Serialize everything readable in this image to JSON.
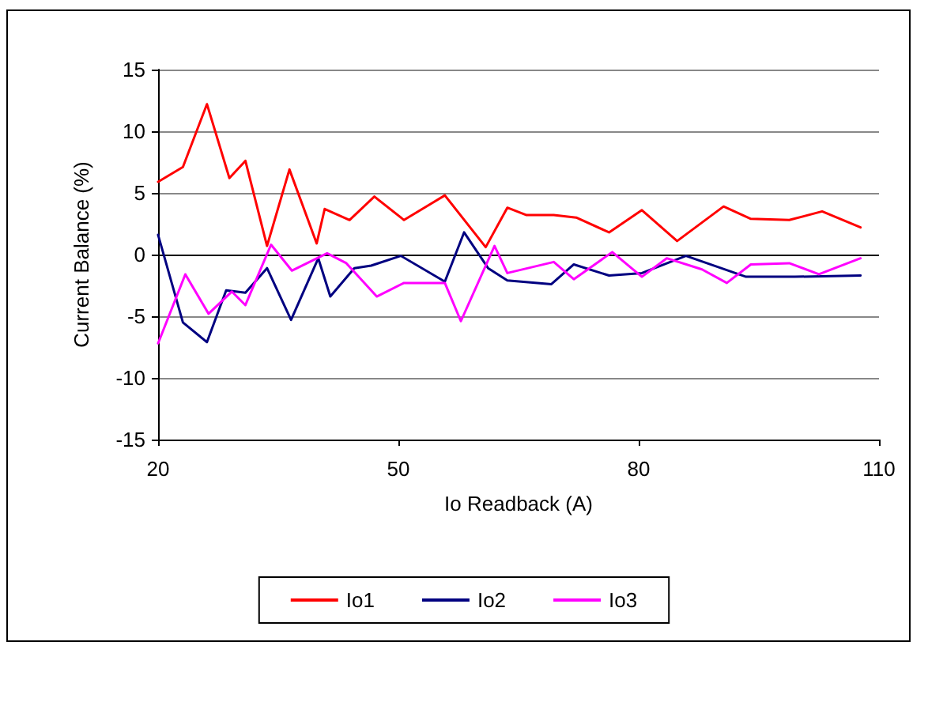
{
  "chart_data": {
    "type": "line",
    "xlabel": "Io Readback (A)",
    "ylabel": "Current Balance (%)",
    "xlim": [
      20,
      110
    ],
    "xticks": [
      20,
      50,
      80,
      110
    ],
    "ylim": [
      -15,
      15
    ],
    "yticks": [
      -15,
      -10,
      -5,
      0,
      5,
      10,
      15
    ],
    "grid": "y",
    "legend": "bottom",
    "marker": "none",
    "line_style": "solid",
    "ref_lines": [
      {
        "axis": "y",
        "value": 0,
        "color": "#000000"
      }
    ],
    "series": [
      {
        "name": "Io1",
        "color": "#ff0000",
        "x": [
          20,
          23.1,
          26.1,
          28.9,
          30.9,
          33.6,
          36.4,
          39.8,
          40.8,
          43.9,
          47,
          50.7,
          55.8,
          60.9,
          63.6,
          66,
          69.4,
          72.2,
          76.3,
          80.4,
          84.8,
          90.6,
          94,
          98.8,
          102.9,
          107.7
        ],
        "values": [
          5.9,
          7.1,
          12.2,
          6.2,
          7.6,
          0.7,
          6.9,
          0.9,
          3.7,
          2.8,
          4.7,
          2.8,
          4.8,
          0.6,
          3.8,
          3.2,
          3.2,
          3.0,
          1.8,
          3.6,
          1.1,
          3.9,
          2.9,
          2.8,
          3.5,
          2.2
        ]
      },
      {
        "name": "Io2",
        "color": "#000080",
        "x": [
          20,
          23.1,
          26.1,
          28.5,
          30.9,
          33.6,
          36.6,
          40,
          41.5,
          44.5,
          46.6,
          50.3,
          55.8,
          58.2,
          61.2,
          63.6,
          69.1,
          71.9,
          76.3,
          80.4,
          85.9,
          93.4,
          99.5,
          107.7
        ],
        "values": [
          1.6,
          -5.5,
          -7.1,
          -2.9,
          -3.1,
          -1.1,
          -5.3,
          -0.3,
          -3.4,
          -1.1,
          -0.9,
          -0.1,
          -2.2,
          1.8,
          -1.1,
          -2.1,
          -2.4,
          -0.8,
          -1.7,
          -1.5,
          -0.1,
          -1.8,
          -1.8,
          -1.7
        ]
      },
      {
        "name": "Io3",
        "color": "#ff00ff",
        "x": [
          20,
          23.4,
          26.3,
          29.2,
          30.9,
          34.1,
          36.7,
          41.1,
          43.5,
          47.3,
          50.7,
          55.8,
          57.8,
          62,
          63.6,
          69.4,
          71.9,
          76.7,
          80.4,
          83.5,
          87.9,
          91,
          94,
          98.8,
          102.5,
          107.7
        ],
        "values": [
          -7.2,
          -1.6,
          -4.8,
          -3.0,
          -4.1,
          0.8,
          -1.3,
          0.1,
          -0.7,
          -3.4,
          -2.3,
          -2.3,
          -5.4,
          0.7,
          -1.5,
          -0.6,
          -2.0,
          0.2,
          -1.8,
          -0.3,
          -1.2,
          -2.3,
          -0.8,
          -0.7,
          -1.6,
          -0.3
        ]
      }
    ]
  }
}
